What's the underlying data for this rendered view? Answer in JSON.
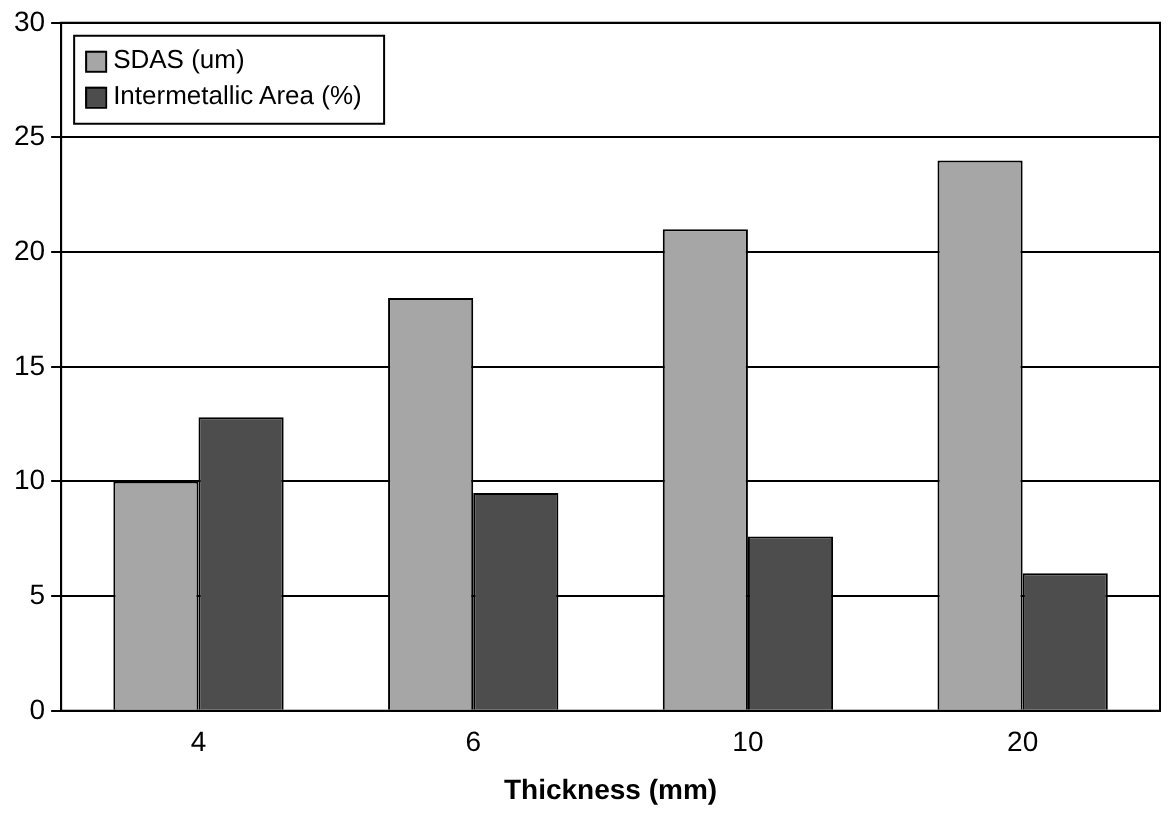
{
  "chart_data": {
    "type": "bar",
    "xlabel": "Thickness (mm)",
    "categories": [
      "4",
      "6",
      "10",
      "20"
    ],
    "series": [
      {
        "name": "SDAS (um)",
        "color": "#a6a6a6",
        "values": [
          10,
          18,
          21,
          24
        ]
      },
      {
        "name": "Intermetallic Area (%)",
        "color": "#4d4d4d",
        "values": [
          12.8,
          9.5,
          7.6,
          6.0
        ]
      }
    ],
    "ylim": [
      0,
      30
    ],
    "yticks": [
      0,
      5,
      10,
      15,
      20,
      25,
      30
    ],
    "grid": "y",
    "legend": "top left"
  }
}
